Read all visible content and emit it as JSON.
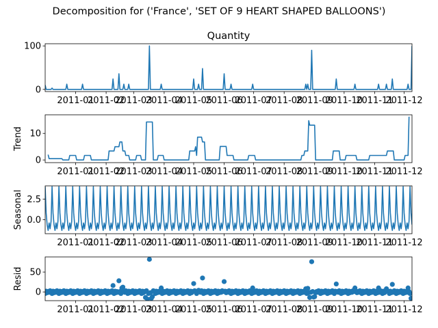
{
  "figure": {
    "suptitle": "Decomposition for ('France', 'SET OF 9 HEART SHAPED BALLOONS')",
    "line_color": "#1f77b4"
  },
  "x_ticks": [
    "2011-01",
    "2011-02",
    "2011-03",
    "2011-04",
    "2011-05",
    "2011-06",
    "2011-07",
    "2011-08",
    "2011-09",
    "2011-10",
    "2011-11",
    "2011-12"
  ],
  "chart_data": [
    {
      "type": "line",
      "title": "Quantity",
      "ylabel": "",
      "ylim": [
        -5,
        105
      ],
      "yticks": [
        0,
        100
      ],
      "x_domain": [
        "2010-12-01",
        "2011-12-09"
      ],
      "points": [
        [
          "2010-12-01",
          10
        ],
        [
          "2010-12-02",
          0
        ],
        [
          "2010-12-07",
          0
        ],
        [
          "2010-12-08",
          3
        ],
        [
          "2010-12-09",
          0
        ],
        [
          "2010-12-22",
          0
        ],
        [
          "2010-12-23",
          12
        ],
        [
          "2010-12-24",
          0
        ],
        [
          "2011-01-07",
          0
        ],
        [
          "2011-01-08",
          12
        ],
        [
          "2011-01-09",
          0
        ],
        [
          "2011-02-07",
          0
        ],
        [
          "2011-02-08",
          24
        ],
        [
          "2011-02-09",
          0
        ],
        [
          "2011-02-13",
          0
        ],
        [
          "2011-02-14",
          36
        ],
        [
          "2011-02-15",
          0
        ],
        [
          "2011-02-18",
          0
        ],
        [
          "2011-02-19",
          12
        ],
        [
          "2011-02-20",
          0
        ],
        [
          "2011-02-23",
          0
        ],
        [
          "2011-02-24",
          12
        ],
        [
          "2011-02-25",
          0
        ],
        [
          "2011-03-16",
          0
        ],
        [
          "2011-03-17",
          100
        ],
        [
          "2011-03-18",
          0
        ],
        [
          "2011-03-28",
          0
        ],
        [
          "2011-03-29",
          12
        ],
        [
          "2011-03-30",
          0
        ],
        [
          "2011-04-30",
          0
        ],
        [
          "2011-05-01",
          24
        ],
        [
          "2011-05-02",
          0
        ],
        [
          "2011-05-05",
          0
        ],
        [
          "2011-05-06",
          12
        ],
        [
          "2011-05-07",
          0
        ],
        [
          "2011-05-09",
          0
        ],
        [
          "2011-05-10",
          48
        ],
        [
          "2011-05-11",
          0
        ],
        [
          "2011-05-31",
          0
        ],
        [
          "2011-06-01",
          36
        ],
        [
          "2011-06-02",
          0
        ],
        [
          "2011-06-07",
          0
        ],
        [
          "2011-06-08",
          12
        ],
        [
          "2011-06-09",
          0
        ],
        [
          "2011-06-29",
          0
        ],
        [
          "2011-06-30",
          12
        ],
        [
          "2011-07-01",
          0
        ],
        [
          "2011-08-22",
          0
        ],
        [
          "2011-08-23",
          12
        ],
        [
          "2011-08-24",
          0
        ],
        [
          "2011-08-25",
          12
        ],
        [
          "2011-08-26",
          0
        ],
        [
          "2011-08-28",
          0
        ],
        [
          "2011-08-29",
          90
        ],
        [
          "2011-08-30",
          0
        ],
        [
          "2011-09-22",
          0
        ],
        [
          "2011-09-23",
          24
        ],
        [
          "2011-09-24",
          0
        ],
        [
          "2011-10-11",
          0
        ],
        [
          "2011-10-12",
          12
        ],
        [
          "2011-10-13",
          0
        ],
        [
          "2011-11-04",
          0
        ],
        [
          "2011-11-05",
          12
        ],
        [
          "2011-11-06",
          0
        ],
        [
          "2011-11-12",
          0
        ],
        [
          "2011-11-13",
          12
        ],
        [
          "2011-11-14",
          0
        ],
        [
          "2011-11-18",
          0
        ],
        [
          "2011-11-19",
          24
        ],
        [
          "2011-11-20",
          0
        ],
        [
          "2011-12-04",
          0
        ],
        [
          "2011-12-05",
          12
        ],
        [
          "2011-12-06",
          0
        ],
        [
          "2011-12-08",
          0
        ],
        [
          "2011-12-09",
          100
        ]
      ]
    },
    {
      "type": "line",
      "title": "",
      "ylabel": "Trend",
      "ylim": [
        -1,
        17
      ],
      "yticks": [
        0,
        10
      ],
      "x_domain": [
        "2010-12-01",
        "2011-12-09"
      ],
      "points": [
        [
          "2010-12-04",
          2
        ],
        [
          "2010-12-05",
          0.5
        ],
        [
          "2010-12-18",
          0.5
        ],
        [
          "2010-12-19",
          0
        ],
        [
          "2010-12-25",
          0
        ],
        [
          "2010-12-26",
          1.7
        ],
        [
          "2011-01-01",
          1.7
        ],
        [
          "2011-01-02",
          0
        ],
        [
          "2011-01-09",
          0
        ],
        [
          "2011-01-10",
          1.7
        ],
        [
          "2011-01-16",
          1.7
        ],
        [
          "2011-01-17",
          0
        ],
        [
          "2011-02-03",
          0
        ],
        [
          "2011-02-04",
          3.4
        ],
        [
          "2011-02-09",
          3.4
        ],
        [
          "2011-02-10",
          5
        ],
        [
          "2011-02-14",
          5
        ],
        [
          "2011-02-15",
          6.8
        ],
        [
          "2011-02-17",
          6.8
        ],
        [
          "2011-02-18",
          3.4
        ],
        [
          "2011-02-20",
          3.4
        ],
        [
          "2011-02-21",
          1.7
        ],
        [
          "2011-02-24",
          1.7
        ],
        [
          "2011-02-25",
          0
        ],
        [
          "2011-03-03",
          0
        ],
        [
          "2011-03-04",
          1.7
        ],
        [
          "2011-03-08",
          1.7
        ],
        [
          "2011-03-09",
          0
        ],
        [
          "2011-03-13",
          0
        ],
        [
          "2011-03-14",
          14.3
        ],
        [
          "2011-03-20",
          14.3
        ],
        [
          "2011-03-21",
          0
        ],
        [
          "2011-03-25",
          0
        ],
        [
          "2011-03-26",
          1.7
        ],
        [
          "2011-03-31",
          1.7
        ],
        [
          "2011-04-01",
          0
        ],
        [
          "2011-04-26",
          0
        ],
        [
          "2011-04-27",
          3.4
        ],
        [
          "2011-05-02",
          3.4
        ],
        [
          "2011-05-03",
          5
        ],
        [
          "2011-05-04",
          1.7
        ],
        [
          "2011-05-05",
          8.6
        ],
        [
          "2011-05-09",
          8.6
        ],
        [
          "2011-05-10",
          6.8
        ],
        [
          "2011-05-12",
          6.8
        ],
        [
          "2011-05-13",
          0
        ],
        [
          "2011-05-27",
          0
        ],
        [
          "2011-05-28",
          5.1
        ],
        [
          "2011-06-03",
          5.1
        ],
        [
          "2011-06-04",
          1.7
        ],
        [
          "2011-06-10",
          1.7
        ],
        [
          "2011-06-11",
          0
        ],
        [
          "2011-06-25",
          0
        ],
        [
          "2011-06-26",
          1.7
        ],
        [
          "2011-07-02",
          1.7
        ],
        [
          "2011-07-03",
          0
        ],
        [
          "2011-08-18",
          0
        ],
        [
          "2011-08-19",
          1.7
        ],
        [
          "2011-08-21",
          1.7
        ],
        [
          "2011-08-22",
          3.4
        ],
        [
          "2011-08-25",
          3.4
        ],
        [
          "2011-08-26",
          14.8
        ],
        [
          "2011-08-27",
          13.1
        ],
        [
          "2011-09-01",
          13.1
        ],
        [
          "2011-09-02",
          0
        ],
        [
          "2011-09-19",
          0
        ],
        [
          "2011-09-20",
          3.4
        ],
        [
          "2011-09-26",
          3.4
        ],
        [
          "2011-09-27",
          0
        ],
        [
          "2011-10-02",
          0
        ],
        [
          "2011-10-03",
          1.7
        ],
        [
          "2011-10-07",
          1.7
        ],
        [
          "2011-10-08",
          1.7
        ],
        [
          "2011-10-13",
          1.7
        ],
        [
          "2011-10-14",
          0
        ],
        [
          "2011-10-26",
          0
        ],
        [
          "2011-10-27",
          1.7
        ],
        [
          "2011-11-01",
          1.7
        ],
        [
          "2011-11-02",
          1.7
        ],
        [
          "2011-11-08",
          1.7
        ],
        [
          "2011-11-09",
          1.7
        ],
        [
          "2011-11-13",
          1.7
        ],
        [
          "2011-11-14",
          3.4
        ],
        [
          "2011-11-20",
          3.4
        ],
        [
          "2011-11-21",
          0
        ],
        [
          "2011-12-01",
          0
        ],
        [
          "2011-12-02",
          1.7
        ],
        [
          "2011-12-05",
          1.7
        ],
        [
          "2011-12-06",
          16.3
        ]
      ]
    },
    {
      "type": "line",
      "title": "",
      "ylabel": "Seasonal",
      "ylim": [
        -1.7,
        4.1
      ],
      "yticks": [
        0.0,
        2.5
      ],
      "ytick_labels": [
        "0.0",
        "2.5"
      ],
      "x_domain": [
        "2010-12-01",
        "2011-12-09"
      ],
      "seasonal_period_days": 7,
      "seasonal_pattern": [
        4.0,
        0.8,
        -0.6,
        -1.3,
        -0.4,
        -1.1,
        -0.2
      ]
    },
    {
      "type": "scatter",
      "title": "",
      "ylabel": "Resid",
      "ylim": [
        -22,
        88
      ],
      "yticks": [
        0,
        50
      ],
      "x_domain": [
        "2010-12-01",
        "2011-12-09"
      ],
      "baseline": 0,
      "residual_pattern": [
        -4,
        2,
        -2,
        1,
        -1,
        3,
        1
      ],
      "outliers": [
        [
          "2011-02-08",
          16
        ],
        [
          "2011-02-14",
          28
        ],
        [
          "2011-02-17",
          10
        ],
        [
          "2011-02-18",
          12
        ],
        [
          "2011-03-13",
          -14
        ],
        [
          "2011-03-15",
          -18
        ],
        [
          "2011-03-17",
          82
        ],
        [
          "2011-03-19",
          -16
        ],
        [
          "2011-03-20",
          -12
        ],
        [
          "2011-03-29",
          10
        ],
        [
          "2011-05-01",
          21
        ],
        [
          "2011-05-06",
          4
        ],
        [
          "2011-05-10",
          35
        ],
        [
          "2011-06-01",
          26
        ],
        [
          "2011-06-30",
          10
        ],
        [
          "2011-08-23",
          8
        ],
        [
          "2011-08-25",
          9
        ],
        [
          "2011-08-27",
          -14
        ],
        [
          "2011-08-29",
          76
        ],
        [
          "2011-08-31",
          -13
        ],
        [
          "2011-09-01",
          -12
        ],
        [
          "2011-09-23",
          20
        ],
        [
          "2011-10-12",
          10
        ],
        [
          "2011-11-05",
          10
        ],
        [
          "2011-11-13",
          8
        ],
        [
          "2011-11-19",
          19
        ],
        [
          "2011-12-05",
          10
        ],
        [
          "2011-12-08",
          -16
        ],
        [
          "2011-12-09",
          -18
        ]
      ]
    }
  ]
}
